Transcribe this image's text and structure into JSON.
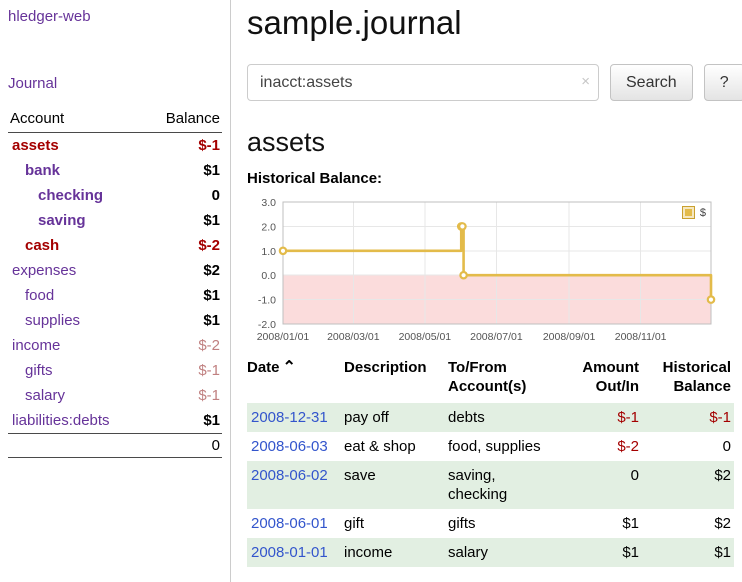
{
  "colors": {
    "link_purple": "#663399",
    "negative": "#a40000",
    "negative_muted": "#c08080",
    "row_green": "#e2efe2",
    "date_blue": "#3355cc",
    "chart_line": "#e3bb4a",
    "chart_negative_bg": "#fbdcdc",
    "grid": "#e7e7e7"
  },
  "app": {
    "brand": "hledger-web",
    "nav_journal": "Journal"
  },
  "sidebar": {
    "header": {
      "account": "Account",
      "balance": "Balance"
    },
    "accounts": [
      {
        "name": "assets",
        "balance": "$-1",
        "indent": 0,
        "bold": true,
        "name_color": "maroon",
        "balance_color": "maroon"
      },
      {
        "name": "bank",
        "balance": "$1",
        "indent": 1,
        "bold": true,
        "name_color": "purple",
        "balance_color": "black"
      },
      {
        "name": "checking",
        "balance": "0",
        "indent": 2,
        "bold": true,
        "name_color": "purple",
        "balance_color": "black"
      },
      {
        "name": "saving",
        "balance": "$1",
        "indent": 2,
        "bold": true,
        "name_color": "purple",
        "balance_color": "black"
      },
      {
        "name": "cash",
        "balance": "$-2",
        "indent": 1,
        "bold": true,
        "name_color": "maroon",
        "balance_color": "maroon"
      },
      {
        "name": "expenses",
        "balance": "$2",
        "indent": 0,
        "bold": false,
        "name_color": "purple",
        "balance_color": "black"
      },
      {
        "name": "food",
        "balance": "$1",
        "indent": 1,
        "bold": false,
        "name_color": "purple",
        "balance_color": "black"
      },
      {
        "name": "supplies",
        "balance": "$1",
        "indent": 1,
        "bold": false,
        "name_color": "purple",
        "balance_color": "black"
      },
      {
        "name": "income",
        "balance": "$-2",
        "indent": 0,
        "bold": false,
        "name_color": "purple",
        "balance_color": "pink"
      },
      {
        "name": "gifts",
        "balance": "$-1",
        "indent": 1,
        "bold": false,
        "name_color": "purple",
        "balance_color": "pink"
      },
      {
        "name": "salary",
        "balance": "$-1",
        "indent": 1,
        "bold": false,
        "name_color": "purple",
        "balance_color": "pink"
      },
      {
        "name": "liabilities:debts",
        "balance": "$1",
        "indent": 0,
        "bold": false,
        "name_color": "purple",
        "balance_color": "black"
      }
    ],
    "total": "0"
  },
  "main": {
    "title": "sample.journal",
    "search": {
      "value": "inacct:assets",
      "clear_icon": "×",
      "button": "Search",
      "help": "?"
    },
    "account_heading": "assets",
    "chart_label": "Historical Balance:"
  },
  "chart_data": {
    "type": "line",
    "step": true,
    "title": "Historical Balance:",
    "xrange": [
      "2008-01-01",
      "2008-12-31"
    ],
    "ylim": [
      -2,
      3
    ],
    "yticks": [
      3.0,
      2.0,
      1.0,
      0.0,
      -1.0,
      -2.0
    ],
    "xticks": [
      {
        "date": "2008-01-01",
        "label": "2008/01/01"
      },
      {
        "date": "2008-03-01",
        "label": "2008/03/01"
      },
      {
        "date": "2008-05-01",
        "label": "2008/05/01"
      },
      {
        "date": "2008-07-01",
        "label": "2008/07/01"
      },
      {
        "date": "2008-09-01",
        "label": "2008/09/01"
      },
      {
        "date": "2008-11-01",
        "label": "2008/11/01"
      }
    ],
    "series": [
      {
        "name": "$",
        "color": "#e3bb4a",
        "points": [
          {
            "date": "2008-01-01",
            "value": 1
          },
          {
            "date": "2008-06-01",
            "value": 2
          },
          {
            "date": "2008-06-02",
            "value": 2
          },
          {
            "date": "2008-06-03",
            "value": 0
          },
          {
            "date": "2008-12-31",
            "value": -1
          }
        ]
      }
    ],
    "negative_region_color": "#fbdcdc",
    "grid_color": "#e7e7e7",
    "legend_position": "top-right"
  },
  "register": {
    "columns": [
      "Date",
      "Description",
      "To/From Account(s)",
      "Amount Out/In",
      "Historical Balance"
    ],
    "sort_icon": "⌃",
    "rows": [
      {
        "date": "2008-12-31",
        "description": "pay off",
        "accounts": "debts",
        "amount": "$-1",
        "balance": "$-1"
      },
      {
        "date": "2008-06-03",
        "description": "eat & shop",
        "accounts": "food, supplies",
        "amount": "$-2",
        "balance": "0"
      },
      {
        "date": "2008-06-02",
        "description": "save",
        "accounts": "saving, checking",
        "amount": "0",
        "balance": "$2"
      },
      {
        "date": "2008-06-01",
        "description": "gift",
        "accounts": "gifts",
        "amount": "$1",
        "balance": "$2"
      },
      {
        "date": "2008-01-01",
        "description": "income",
        "accounts": "salary",
        "amount": "$1",
        "balance": "$1"
      }
    ]
  }
}
